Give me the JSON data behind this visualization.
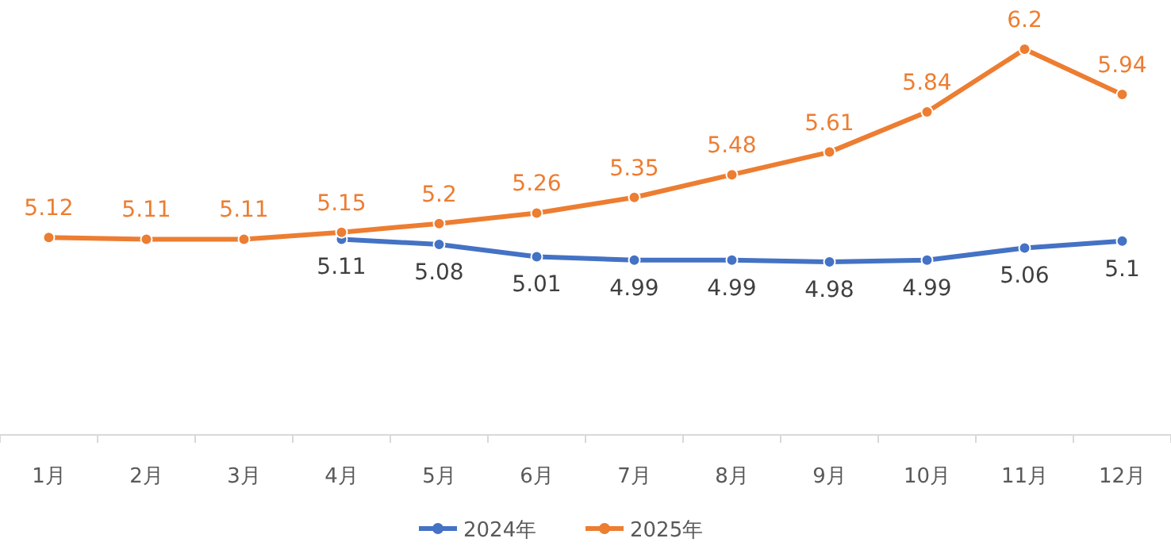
{
  "chart_data": {
    "type": "line",
    "categories": [
      "1月",
      "2月",
      "3月",
      "4月",
      "5月",
      "6月",
      "7月",
      "8月",
      "9月",
      "10月",
      "11月",
      "12月"
    ],
    "series": [
      {
        "name": "2024年",
        "color": "#4472c4",
        "values": [
          null,
          null,
          null,
          5.11,
          5.08,
          5.01,
          4.99,
          4.99,
          4.98,
          4.99,
          5.06,
          5.1
        ]
      },
      {
        "name": "2025年",
        "color": "#ed7d31",
        "values": [
          5.12,
          5.11,
          5.11,
          5.15,
          5.2,
          5.26,
          5.35,
          5.48,
          5.61,
          5.84,
          6.2,
          5.94
        ]
      }
    ],
    "data_labels": true,
    "legend": "bottom",
    "marker": "circle",
    "tick_labels": "x"
  }
}
